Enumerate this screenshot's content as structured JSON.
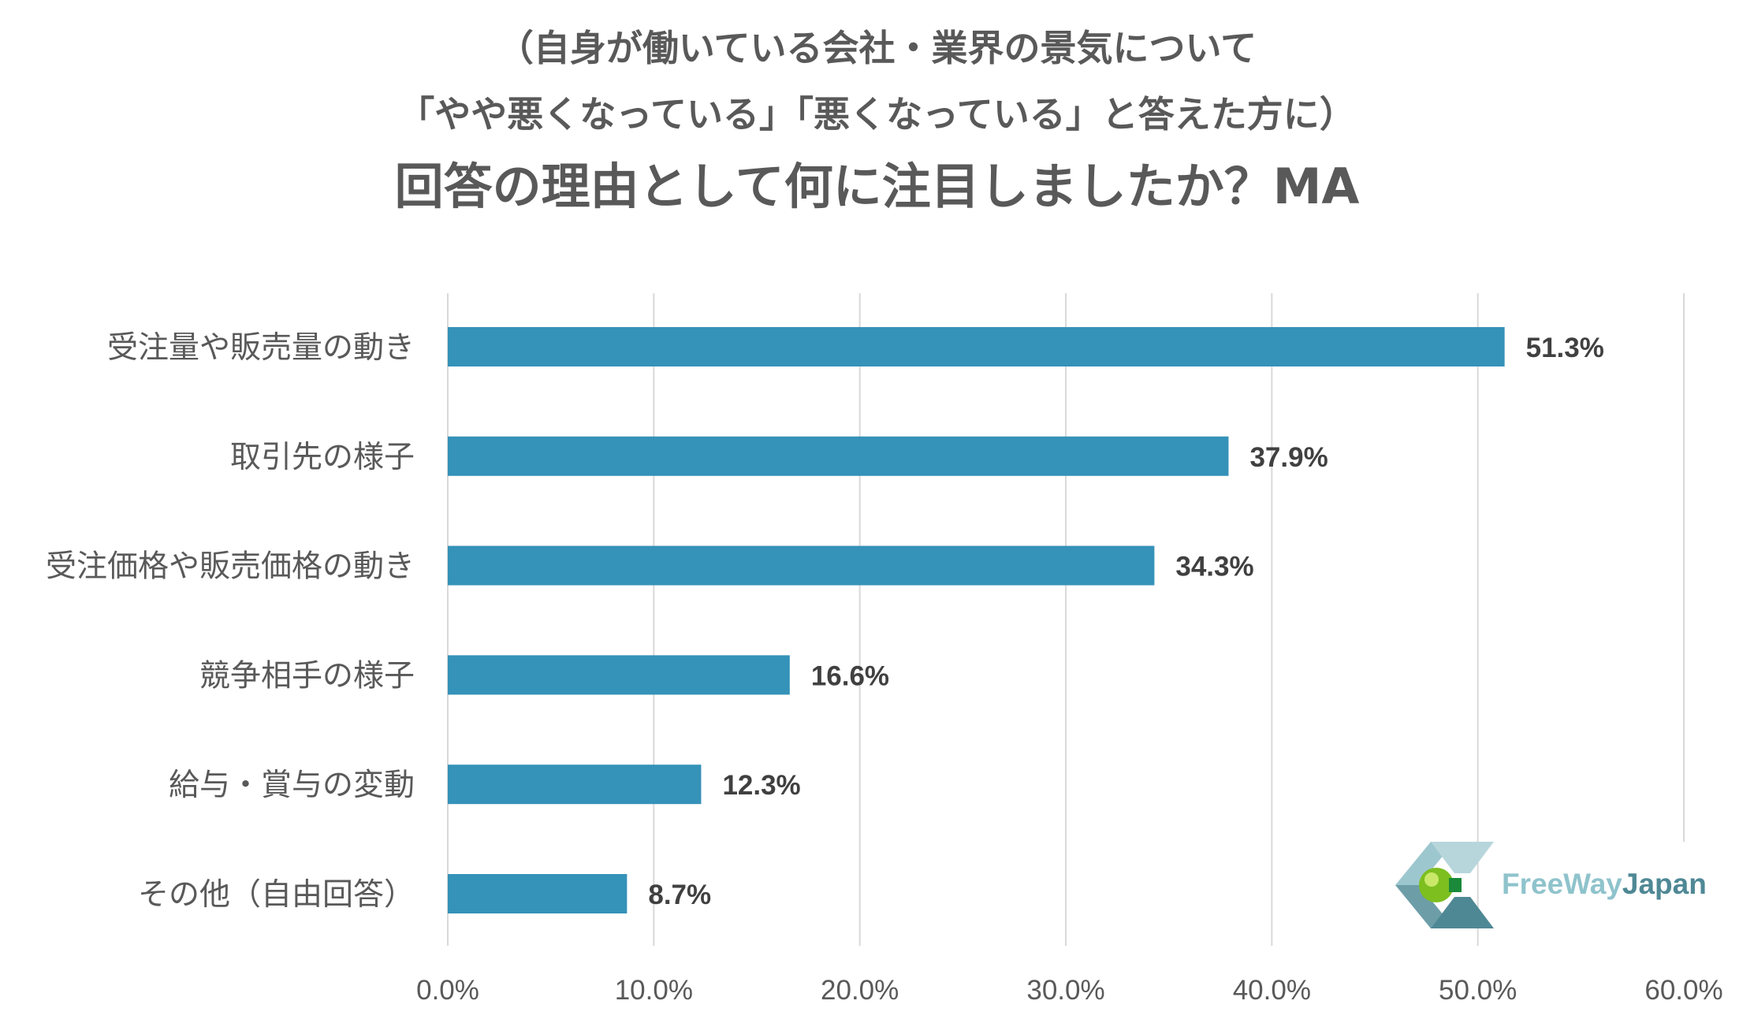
{
  "title": {
    "line1": "（自身が働いている会社・業界の景気について",
    "line2": "「やや悪くなっている」「悪くなっている」と答えた方に）",
    "main": "回答の理由として何に注目しましたか？MA"
  },
  "chart_data": {
    "type": "bar",
    "orientation": "horizontal",
    "categories": [
      "受注量や販売量の動き",
      "取引先の様子",
      "受注価格や販売価格の動き",
      "競争相手の様子",
      "給与・賞与の変動",
      "その他（自由回答）"
    ],
    "values": [
      51.3,
      37.9,
      34.3,
      16.6,
      12.3,
      8.7
    ],
    "value_labels": [
      "51.3%",
      "37.9%",
      "34.3%",
      "16.6%",
      "12.3%",
      "8.7%"
    ],
    "xlim": [
      0,
      60
    ],
    "xticks": [
      0,
      10,
      20,
      30,
      40,
      50,
      60
    ],
    "xtick_labels": [
      "0.0%",
      "10.0%",
      "20.0%",
      "30.0%",
      "40.0%",
      "50.0%",
      "60.0%"
    ],
    "grid": "vertical",
    "bar_color": "#3592b8",
    "grid_color": "#d9d9d9"
  },
  "logo": {
    "part1": "FreeWay",
    "part2": "Japan"
  }
}
